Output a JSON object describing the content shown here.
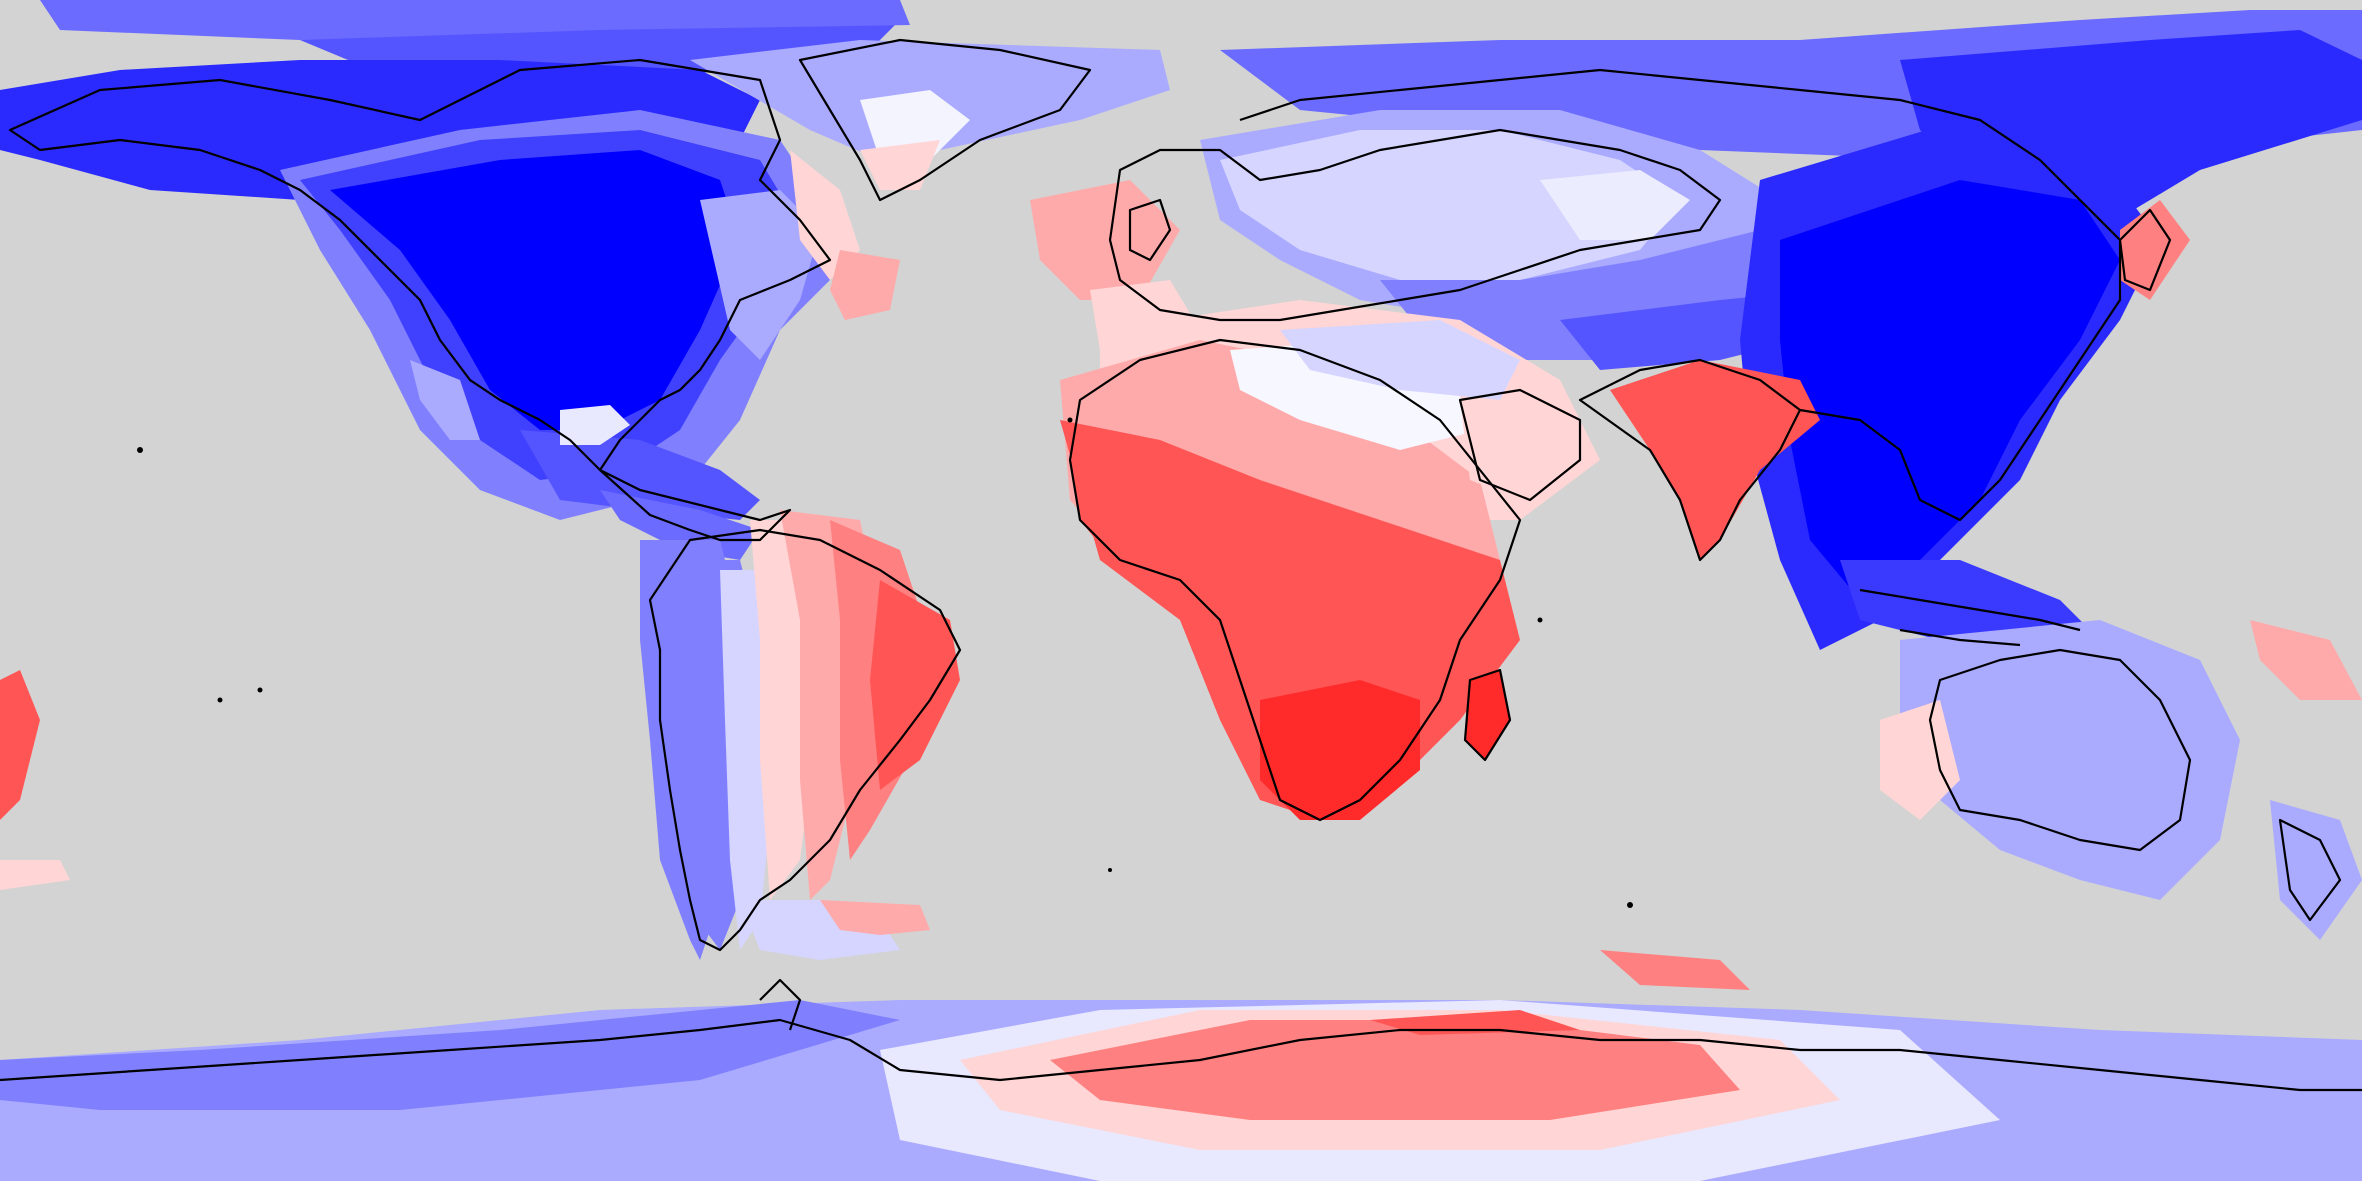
{
  "map": {
    "projection": "equirectangular",
    "extent": {
      "lon": [
        -180,
        180
      ],
      "lat": [
        -90,
        90
      ]
    },
    "ocean_color": "#d3d3d3",
    "coastline_color": "#000000",
    "colorscale": {
      "type": "diverging",
      "levels": [
        -6,
        -5,
        -4,
        -3,
        -2,
        -1,
        1,
        2,
        3,
        4,
        5
      ],
      "colors": [
        "#0000ff",
        "#2a2aff",
        "#5555ff",
        "#8080ff",
        "#aaaaff",
        "#d5d5ff",
        "#ffd5d5",
        "#ffaaaa",
        "#ff8080",
        "#ff5555",
        "#ff2a2a"
      ]
    },
    "regions": [
      {
        "id": "canada-usa",
        "level": -6
      },
      {
        "id": "alaska-yukon",
        "level": -5
      },
      {
        "id": "siberia-east",
        "level": -5
      },
      {
        "id": "china-southeast-asia",
        "level": -6
      },
      {
        "id": "central-asia",
        "level": -3
      },
      {
        "id": "europe",
        "level": -1
      },
      {
        "id": "north-africa",
        "level": 2
      },
      {
        "id": "sub-saharan-africa",
        "level": 4
      },
      {
        "id": "south-africa-madagascar",
        "level": 5
      },
      {
        "id": "india",
        "level": 4
      },
      {
        "id": "amazon-brazil",
        "level": 3
      },
      {
        "id": "andes-west",
        "level": -3
      },
      {
        "id": "australia",
        "level": -2
      },
      {
        "id": "antarctica-east",
        "level": 3
      },
      {
        "id": "antarctica-west",
        "level": -3
      },
      {
        "id": "greenland",
        "level": -2
      }
    ]
  }
}
